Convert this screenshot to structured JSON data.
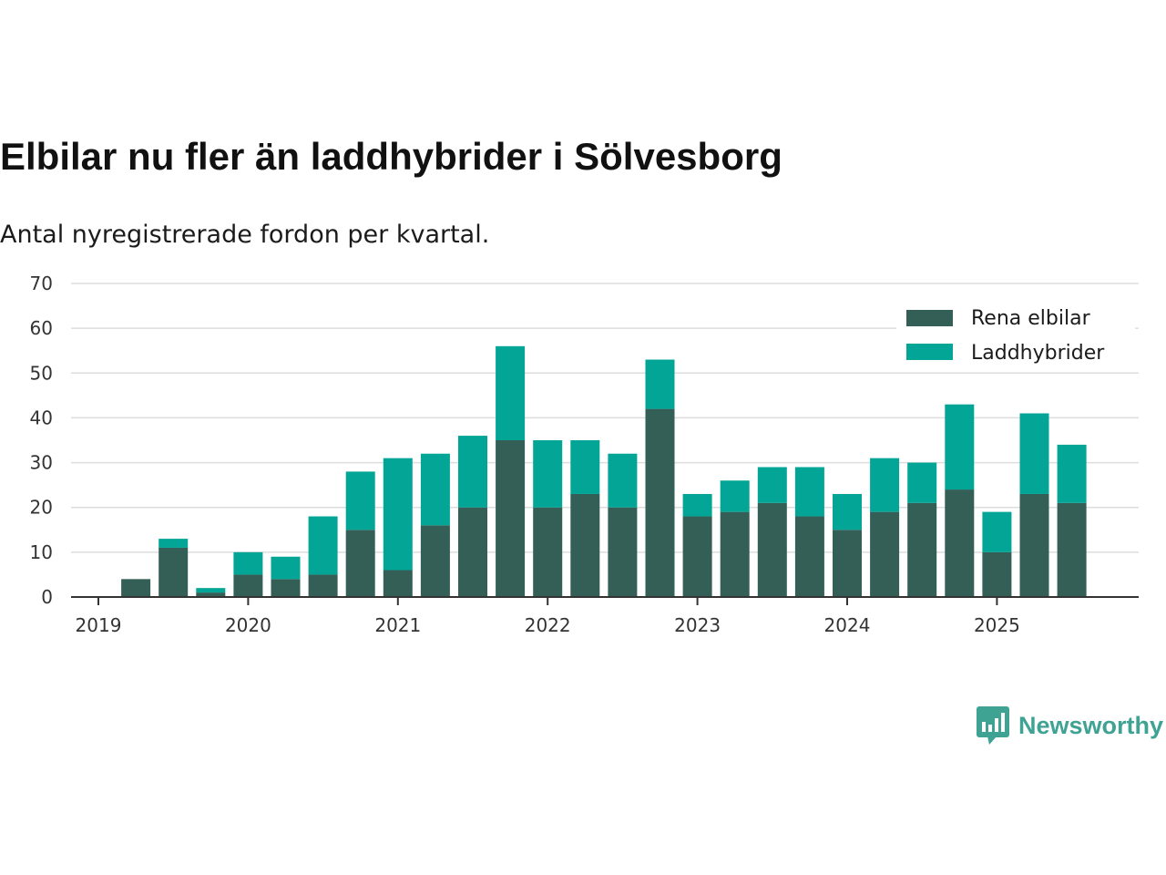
{
  "header": {
    "title": "Elbilar nu fler än laddhybrider i Sölvesborg",
    "subtitle": "Antal nyregistrerade fordon per kvartal."
  },
  "brand": {
    "name": "Newsworthy",
    "icon": "bar-chart-bubble-icon",
    "color": "#3fa394"
  },
  "chart_data": {
    "type": "bar",
    "stacked": true,
    "title": "Elbilar nu fler än laddhybrider i Sölvesborg",
    "subtitle": "Antal nyregistrerade fordon per kvartal.",
    "xlabel": "",
    "ylabel": "",
    "ylim": [
      0,
      70
    ],
    "yticks": [
      0,
      10,
      20,
      30,
      40,
      50,
      60,
      70
    ],
    "grid": true,
    "legend_position": "top-right",
    "categories": [
      "2019 Q1",
      "2019 Q2",
      "2019 Q3",
      "2019 Q4",
      "2020 Q1",
      "2020 Q2",
      "2020 Q3",
      "2020 Q4",
      "2021 Q1",
      "2021 Q2",
      "2021 Q3",
      "2021 Q4",
      "2022 Q1",
      "2022 Q2",
      "2022 Q3",
      "2022 Q4",
      "2023 Q1",
      "2023 Q2",
      "2023 Q3",
      "2023 Q4",
      "2024 Q1",
      "2024 Q2",
      "2024 Q3",
      "2024 Q4",
      "2025 Q1",
      "2025 Q2",
      "2025 Q3"
    ],
    "x_tick_labels": [
      "2019",
      "2020",
      "2021",
      "2022",
      "2023",
      "2024",
      "2025"
    ],
    "series": [
      {
        "name": "Rena elbilar",
        "color": "#335f57",
        "values": [
          0,
          4,
          11,
          1,
          5,
          4,
          5,
          15,
          6,
          16,
          20,
          35,
          20,
          23,
          20,
          42,
          18,
          19,
          21,
          18,
          15,
          19,
          21,
          24,
          10,
          23,
          21
        ]
      },
      {
        "name": "Laddhybrider",
        "color": "#02a596",
        "values": [
          0,
          0,
          2,
          1,
          5,
          5,
          13,
          13,
          25,
          16,
          16,
          21,
          15,
          12,
          12,
          11,
          5,
          7,
          8,
          11,
          8,
          12,
          9,
          19,
          9,
          18,
          13
        ]
      }
    ]
  }
}
